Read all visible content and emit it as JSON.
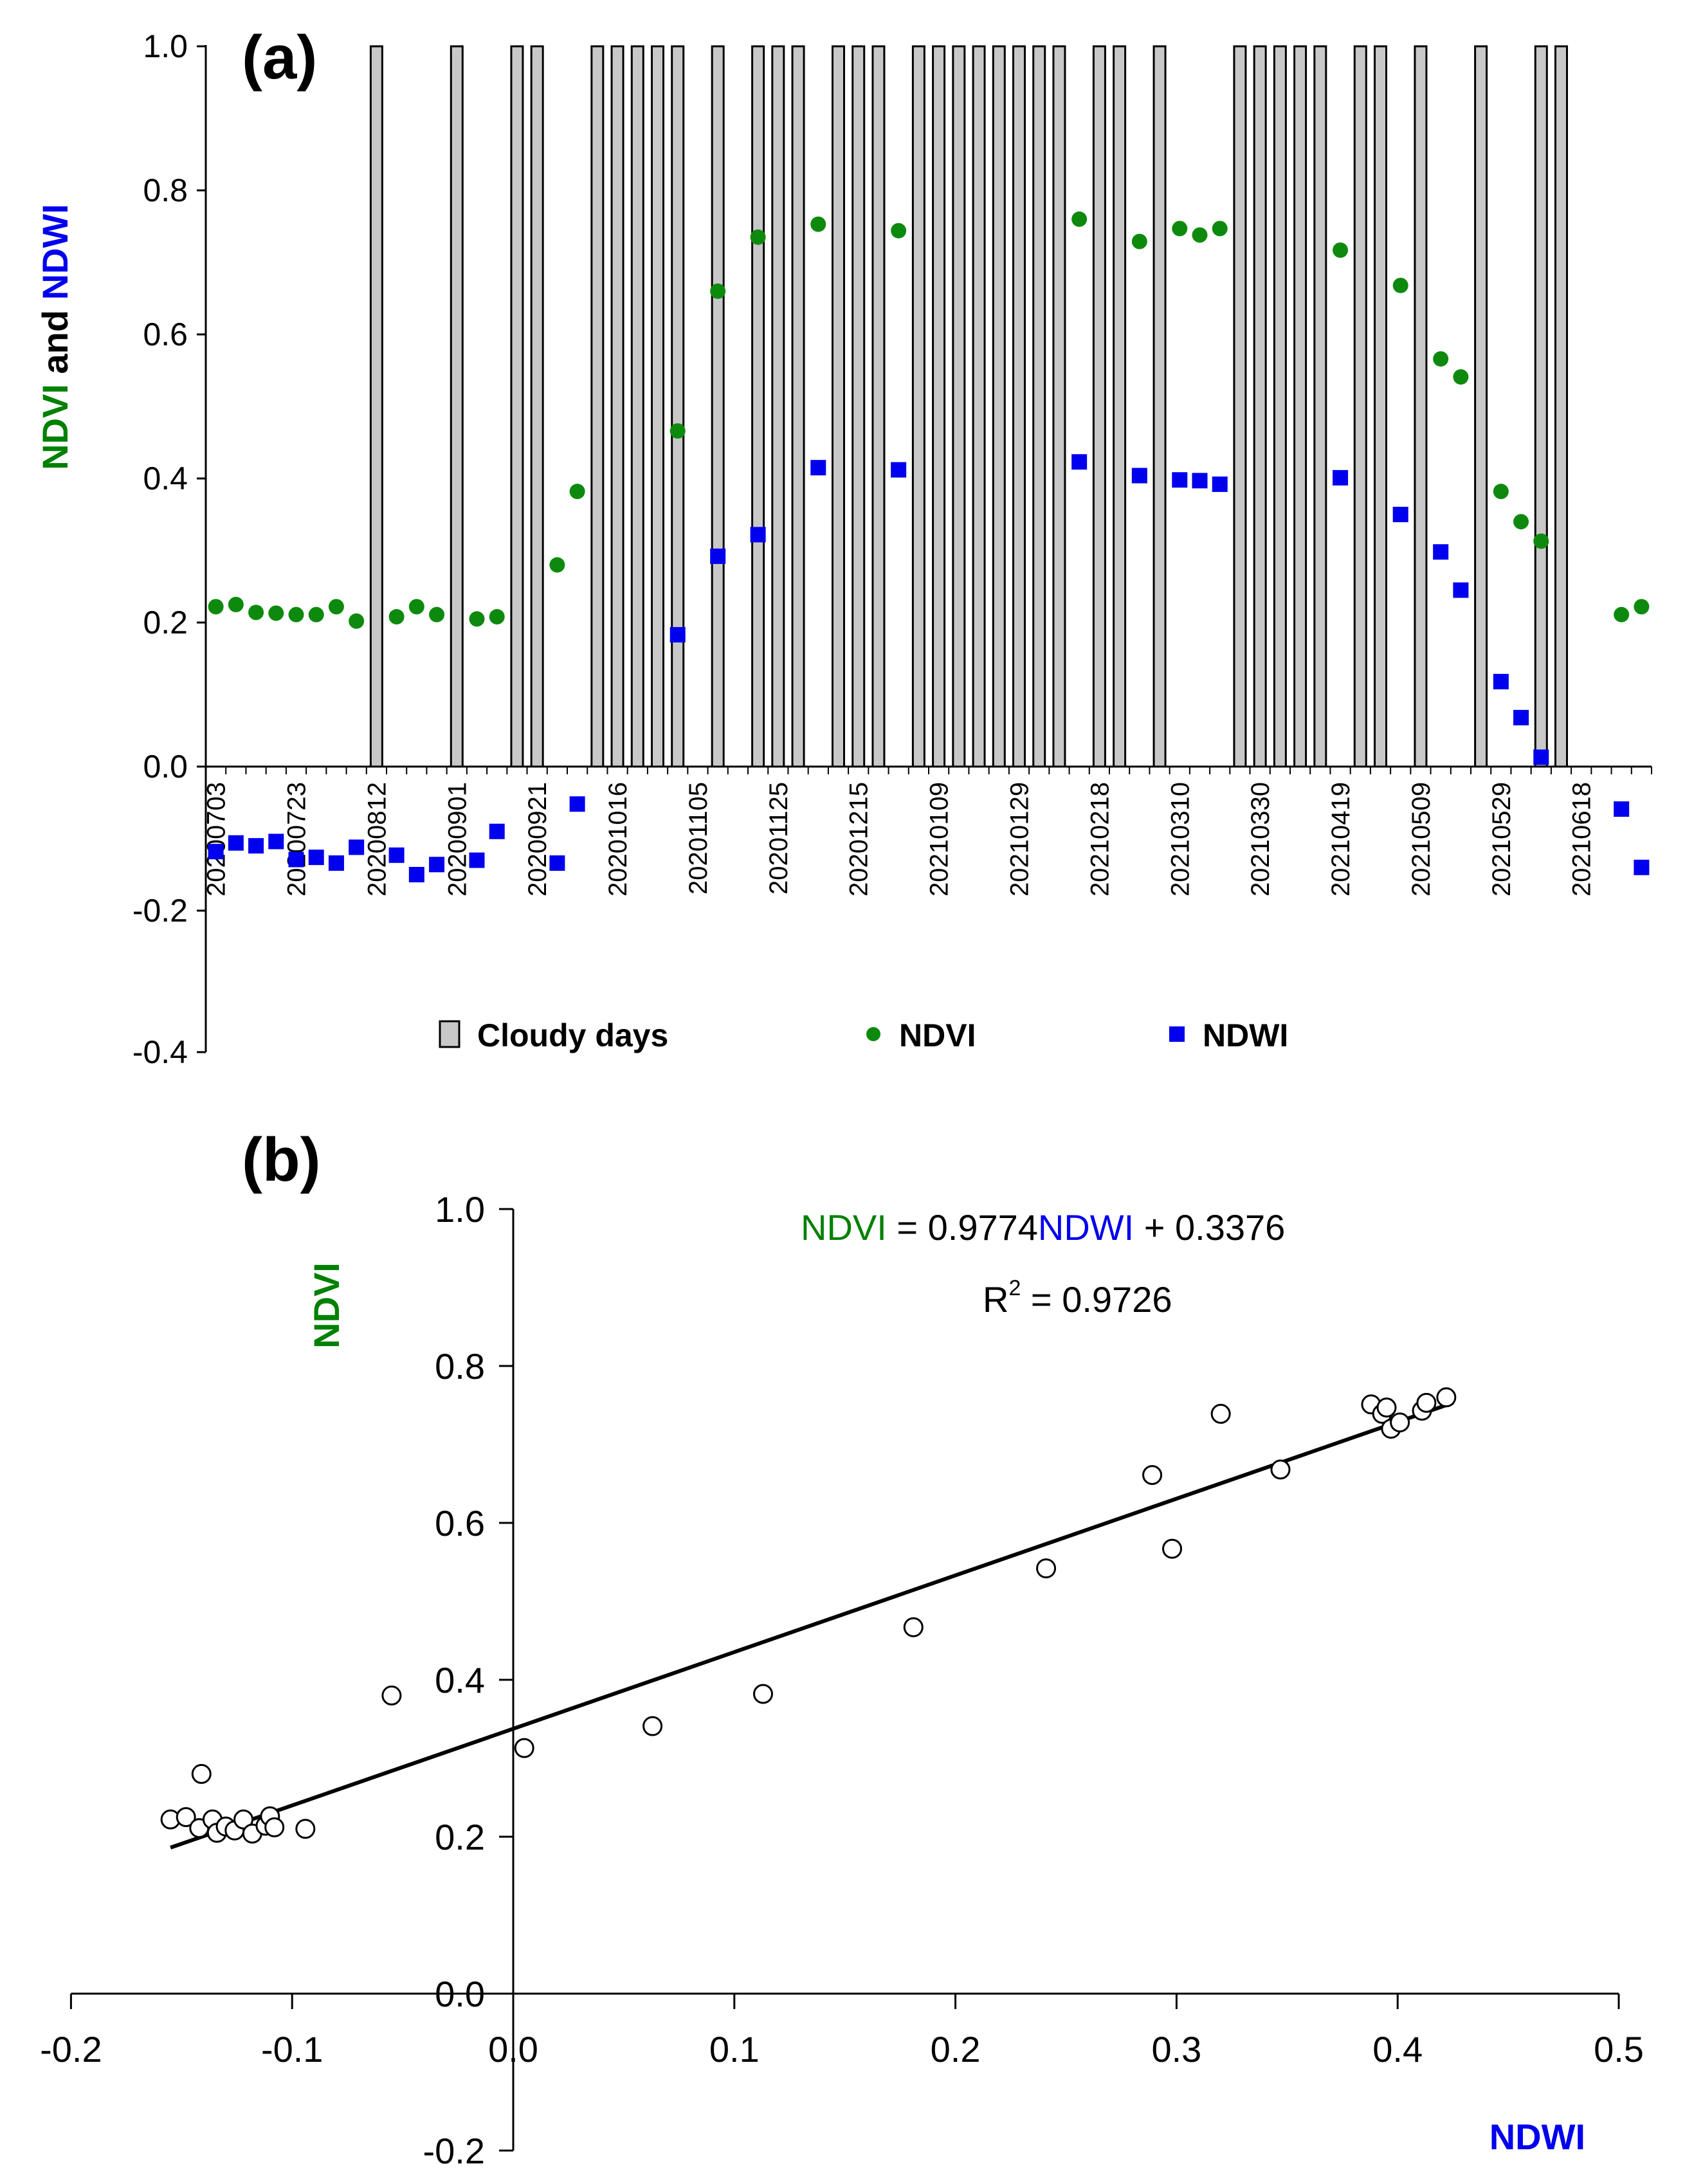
{
  "figure": {
    "colors": {
      "ndvi": "#008000",
      "ndwi": "#0000ee",
      "cloudy_fill": "#c8c8c8",
      "axis": "#000000"
    }
  },
  "chart_data": [
    {
      "panel": "(a)",
      "type": "bar+scatter",
      "ylabel": {
        "part1": "NDVI",
        "part2": " and ",
        "part3": "NDWI"
      },
      "ylim": [
        -0.4,
        1.0
      ],
      "yticks": [
        -0.4,
        -0.2,
        0.0,
        0.2,
        0.4,
        0.6,
        0.8,
        1.0
      ],
      "ytick_labels": [
        "-0.4",
        "-0.2",
        "0.0",
        "0.2",
        "0.4",
        "0.6",
        "0.8",
        "1.0"
      ],
      "x_count": 72,
      "x_date_labels": [
        {
          "index": 0,
          "label": "20200703"
        },
        {
          "index": 4,
          "label": "20200723"
        },
        {
          "index": 8,
          "label": "20200812"
        },
        {
          "index": 12,
          "label": "20200901"
        },
        {
          "index": 16,
          "label": "20200921"
        },
        {
          "index": 20,
          "label": "20201016"
        },
        {
          "index": 24,
          "label": "20201105"
        },
        {
          "index": 28,
          "label": "20201125"
        },
        {
          "index": 32,
          "label": "20201215"
        },
        {
          "index": 36,
          "label": "20210109"
        },
        {
          "index": 40,
          "label": "20210129"
        },
        {
          "index": 44,
          "label": "20210218"
        },
        {
          "index": 48,
          "label": "20210310"
        },
        {
          "index": 52,
          "label": "20210330"
        },
        {
          "index": 56,
          "label": "20210419"
        },
        {
          "index": 60,
          "label": "20210509"
        },
        {
          "index": 64,
          "label": "20210529"
        },
        {
          "index": 68,
          "label": "20210618"
        }
      ],
      "legend": [
        {
          "label": "Cloudy days",
          "kind": "bar"
        },
        {
          "label": "NDVI",
          "kind": "circle"
        },
        {
          "label": "NDWI",
          "kind": "square"
        }
      ],
      "cloudy_days": {
        "value": 1.0,
        "indices": [
          8,
          12,
          15,
          16,
          19,
          20,
          21,
          22,
          23,
          25,
          27,
          28,
          29,
          31,
          32,
          33,
          35,
          36,
          37,
          38,
          39,
          40,
          41,
          42,
          44,
          45,
          47,
          51,
          52,
          53,
          54,
          55,
          57,
          58,
          60,
          63,
          66,
          67
        ]
      },
      "series": [
        {
          "name": "NDVI",
          "points": [
            [
              0,
              0.222
            ],
            [
              1,
              0.225
            ],
            [
              2,
              0.214
            ],
            [
              3,
              0.213
            ],
            [
              4,
              0.211
            ],
            [
              5,
              0.211
            ],
            [
              6,
              0.222
            ],
            [
              7,
              0.202
            ],
            [
              9,
              0.208
            ],
            [
              10,
              0.222
            ],
            [
              11,
              0.211
            ],
            [
              13,
              0.205
            ],
            [
              14,
              0.208
            ],
            [
              17,
              0.28
            ],
            [
              18,
              0.382
            ],
            [
              23,
              0.466
            ],
            [
              25,
              0.66
            ],
            [
              27,
              0.735
            ],
            [
              30,
              0.753
            ],
            [
              34,
              0.744
            ],
            [
              43,
              0.76
            ],
            [
              46,
              0.729
            ],
            [
              48,
              0.747
            ],
            [
              49,
              0.738
            ],
            [
              50,
              0.747
            ],
            [
              56,
              0.717
            ],
            [
              59,
              0.668
            ],
            [
              61,
              0.566
            ],
            [
              62,
              0.541
            ],
            [
              64,
              0.382
            ],
            [
              65,
              0.34
            ],
            [
              66,
              0.313
            ],
            [
              70,
              0.211
            ],
            [
              71,
              0.222
            ]
          ]
        },
        {
          "name": "NDWI",
          "points": [
            [
              0,
              -0.118
            ],
            [
              1,
              -0.106
            ],
            [
              2,
              -0.11
            ],
            [
              3,
              -0.104
            ],
            [
              4,
              -0.129
            ],
            [
              5,
              -0.126
            ],
            [
              6,
              -0.134
            ],
            [
              7,
              -0.112
            ],
            [
              9,
              -0.123
            ],
            [
              10,
              -0.15
            ],
            [
              11,
              -0.136
            ],
            [
              13,
              -0.13
            ],
            [
              14,
              -0.09
            ],
            [
              17,
              -0.134
            ],
            [
              18,
              -0.052
            ],
            [
              23,
              0.183
            ],
            [
              25,
              0.292
            ],
            [
              27,
              0.322
            ],
            [
              30,
              0.415
            ],
            [
              34,
              0.412
            ],
            [
              43,
              0.423
            ],
            [
              46,
              0.404
            ],
            [
              48,
              0.398
            ],
            [
              49,
              0.397
            ],
            [
              50,
              0.392
            ],
            [
              56,
              0.401
            ],
            [
              59,
              0.35
            ],
            [
              61,
              0.298
            ],
            [
              62,
              0.245
            ],
            [
              64,
              0.118
            ],
            [
              65,
              0.068
            ],
            [
              66,
              0.013
            ],
            [
              70,
              -0.059
            ],
            [
              71,
              -0.14
            ]
          ]
        }
      ]
    },
    {
      "panel": "(b)",
      "type": "scatter",
      "xlabel": "NDWI",
      "ylabel": "NDVI",
      "xlim": [
        -0.2,
        0.5
      ],
      "ylim": [
        -0.2,
        1.0
      ],
      "xticks": [
        -0.2,
        -0.1,
        0.0,
        0.1,
        0.2,
        0.3,
        0.4,
        0.5
      ],
      "xtick_labels": [
        "-0.2",
        "-0.1",
        "0.0",
        "0.1",
        "0.2",
        "0.3",
        "0.4",
        "0.5"
      ],
      "yticks": [
        -0.2,
        0.0,
        0.2,
        0.4,
        0.6,
        0.8,
        1.0
      ],
      "ytick_labels": [
        "-0.2",
        "0.0",
        "0.2",
        "0.4",
        "0.6",
        "0.8",
        "1.0"
      ],
      "fit": {
        "slope": 0.9774,
        "intercept": 0.3376,
        "x_range": [
          -0.155,
          0.425
        ]
      },
      "equation": {
        "lhs": "NDVI",
        "eq": " = 0.9774",
        "var": "NDWI",
        "rest": " + 0.3376"
      },
      "r2": {
        "prefix": "R",
        "sup": "2",
        "rest": " = 0.9726"
      },
      "points": [
        [
          -0.155,
          0.222
        ],
        [
          -0.148,
          0.225
        ],
        [
          -0.142,
          0.211
        ],
        [
          -0.136,
          0.222
        ],
        [
          -0.134,
          0.205
        ],
        [
          -0.13,
          0.213
        ],
        [
          -0.126,
          0.208
        ],
        [
          -0.122,
          0.222
        ],
        [
          -0.118,
          0.204
        ],
        [
          -0.112,
          0.214
        ],
        [
          -0.11,
          0.226
        ],
        [
          -0.108,
          0.212
        ],
        [
          -0.094,
          0.21
        ],
        [
          -0.141,
          0.28
        ],
        [
          -0.055,
          0.38
        ],
        [
          0.005,
          0.313
        ],
        [
          0.063,
          0.341
        ],
        [
          0.113,
          0.382
        ],
        [
          0.181,
          0.467
        ],
        [
          0.241,
          0.542
        ],
        [
          0.289,
          0.661
        ],
        [
          0.298,
          0.567
        ],
        [
          0.32,
          0.739
        ],
        [
          0.347,
          0.668
        ],
        [
          0.388,
          0.751
        ],
        [
          0.393,
          0.739
        ],
        [
          0.395,
          0.747
        ],
        [
          0.397,
          0.72
        ],
        [
          0.401,
          0.728
        ],
        [
          0.411,
          0.743
        ],
        [
          0.413,
          0.753
        ],
        [
          0.422,
          0.76
        ]
      ]
    }
  ]
}
